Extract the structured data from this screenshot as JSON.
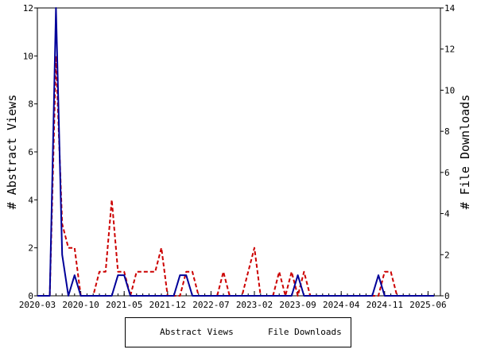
{
  "chart_data": {
    "type": "line",
    "x_ticks": [
      "2020-03",
      "2020-10",
      "2021-05",
      "2021-12",
      "2022-07",
      "2023-02",
      "2023-09",
      "2024-04",
      "2024-11",
      "2025-06"
    ],
    "ylabel_left": "# Abstract Views",
    "ylabel_right": "# File Downloads",
    "ylim_left": [
      0,
      12
    ],
    "ylim_right": [
      0,
      14
    ],
    "yticks_left": [
      "0",
      "2",
      "4",
      "6",
      "8",
      "10",
      "12"
    ],
    "yticks_right": [
      "0",
      "2",
      "4",
      "6",
      "8",
      "10",
      "12",
      "14"
    ],
    "grid": false,
    "legend_position": "bottom",
    "series": [
      {
        "name": "Abstract Views",
        "axis": "left",
        "color": "#cc0000",
        "style": "dashed",
        "x": [
          "2020-03",
          "2020-04",
          "2020-05",
          "2020-06",
          "2020-07",
          "2020-08",
          "2020-09",
          "2020-10",
          "2020-11",
          "2020-12",
          "2021-01",
          "2021-02",
          "2021-03",
          "2021-04",
          "2021-05",
          "2021-06",
          "2021-07",
          "2021-08",
          "2021-09",
          "2021-10",
          "2021-11",
          "2021-12",
          "2022-01",
          "2022-02",
          "2022-03",
          "2022-04",
          "2022-05",
          "2022-06",
          "2022-07",
          "2022-08",
          "2022-09",
          "2022-10",
          "2022-11",
          "2022-12",
          "2023-01",
          "2023-02",
          "2023-03",
          "2023-04",
          "2023-05",
          "2023-06",
          "2023-07",
          "2023-08",
          "2023-09",
          "2023-10",
          "2023-11",
          "2023-12",
          "2024-01",
          "2024-02",
          "2024-03",
          "2024-04",
          "2024-05",
          "2024-06",
          "2024-07",
          "2024-08",
          "2024-09",
          "2024-10",
          "2024-11",
          "2024-12",
          "2025-01",
          "2025-02",
          "2025-03",
          "2025-04",
          "2025-05",
          "2025-06",
          "2025-07"
        ],
        "values": [
          0,
          0,
          0,
          10,
          3,
          2,
          2,
          0,
          0,
          0,
          1,
          1,
          4,
          1,
          1,
          0,
          1,
          1,
          1,
          1,
          2,
          0,
          0,
          0,
          1,
          1,
          0,
          0,
          0,
          0,
          1,
          0,
          0,
          0,
          1,
          2,
          0,
          0,
          0,
          1,
          0,
          1,
          0,
          1,
          0,
          0,
          0,
          0,
          0,
          0,
          0,
          0,
          0,
          0,
          0,
          0,
          1,
          1,
          0,
          0,
          0,
          0,
          0,
          0,
          0
        ]
      },
      {
        "name": "File Downloads",
        "axis": "right",
        "color": "#000099",
        "style": "solid",
        "x": [
          "2020-03",
          "2020-04",
          "2020-05",
          "2020-06",
          "2020-07",
          "2020-08",
          "2020-09",
          "2020-10",
          "2020-11",
          "2020-12",
          "2021-01",
          "2021-02",
          "2021-03",
          "2021-04",
          "2021-05",
          "2021-06",
          "2021-07",
          "2021-08",
          "2021-09",
          "2021-10",
          "2021-11",
          "2021-12",
          "2022-01",
          "2022-02",
          "2022-03",
          "2022-04",
          "2022-05",
          "2022-06",
          "2022-07",
          "2022-08",
          "2022-09",
          "2022-10",
          "2022-11",
          "2022-12",
          "2023-01",
          "2023-02",
          "2023-03",
          "2023-04",
          "2023-05",
          "2023-06",
          "2023-07",
          "2023-08",
          "2023-09",
          "2023-10",
          "2023-11",
          "2023-12",
          "2024-01",
          "2024-02",
          "2024-03",
          "2024-04",
          "2024-05",
          "2024-06",
          "2024-07",
          "2024-08",
          "2024-09",
          "2024-10",
          "2024-11",
          "2024-12",
          "2025-01",
          "2025-02",
          "2025-03",
          "2025-04",
          "2025-05",
          "2025-06",
          "2025-07"
        ],
        "values": [
          0,
          0,
          0,
          14,
          2,
          0,
          1,
          0,
          0,
          0,
          0,
          0,
          0,
          1,
          1,
          0,
          0,
          0,
          0,
          0,
          0,
          0,
          0,
          1,
          1,
          0,
          0,
          0,
          0,
          0,
          0,
          0,
          0,
          0,
          0,
          0,
          0,
          0,
          0,
          0,
          0,
          0,
          1,
          0,
          0,
          0,
          0,
          0,
          0,
          0,
          0,
          0,
          0,
          0,
          0,
          1,
          0,
          0,
          0,
          0,
          0,
          0,
          0,
          0,
          0
        ]
      }
    ]
  }
}
